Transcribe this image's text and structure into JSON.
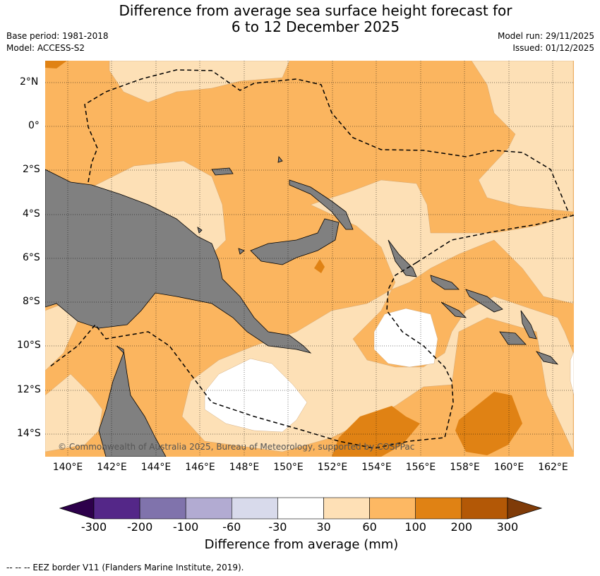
{
  "header": {
    "title_line1": "Difference from average sea surface height forecast for",
    "title_line2": "6 to 12 December 2025",
    "base_period": "Base period: 1981-2018",
    "model": "Model: ACCESS-S2",
    "model_run": "Model run: 29/11/2025",
    "issued": "Issued: 01/12/2025"
  },
  "map": {
    "lat_labels": [
      "2°N",
      "0°",
      "2°S",
      "4°S",
      "6°S",
      "8°S",
      "10°S",
      "12°S",
      "14°S"
    ],
    "lon_labels": [
      "140°E",
      "142°E",
      "144°E",
      "146°E",
      "148°E",
      "150°E",
      "152°E",
      "154°E",
      "156°E",
      "158°E",
      "160°E",
      "162°E"
    ],
    "copyright": "© Commonwealth of Australia 2025, Bureau of Meteorology, supported by COSPPac"
  },
  "colorbar": {
    "labels": [
      "-300",
      "-200",
      "-100",
      "-60",
      "-30",
      "30",
      "60",
      "100",
      "200",
      "300"
    ],
    "colors": [
      "#2d004b",
      "#542788",
      "#8073ac",
      "#b2abd2",
      "#d8daeb",
      "#ffffff",
      "#fee0b6",
      "#fdb863",
      "#e08214",
      "#b35806",
      "#7f3b08"
    ],
    "title": "Difference from average (mm)"
  },
  "footer": {
    "legend": "--  --  -- EEZ border V11 (Flanders Marine Institute, 2019)."
  }
}
